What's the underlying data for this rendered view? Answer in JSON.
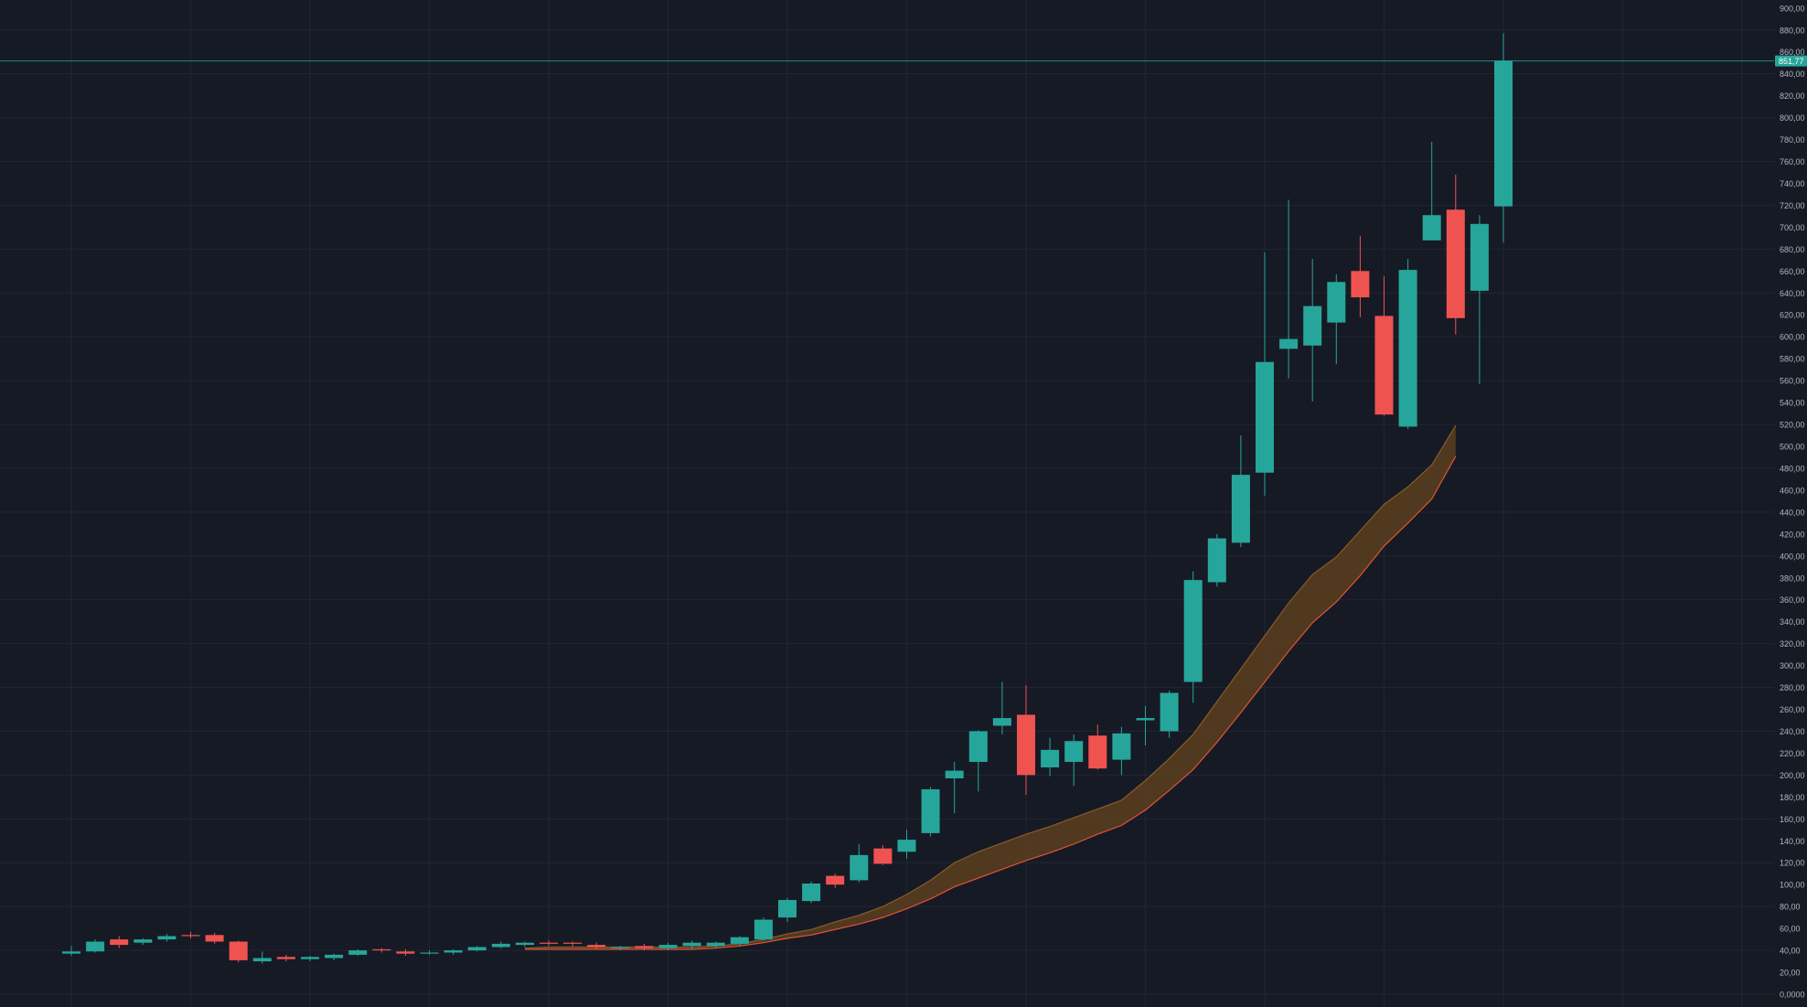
{
  "colors": {
    "background": "#161a25",
    "grid": "#222633",
    "up": "#26a69a",
    "down": "#ef5350",
    "axis_text": "#b2b5be",
    "price_line": "#26a69a",
    "band_fill": "#5a3f1d",
    "band_upper": "#8a5a2a",
    "band_lower": "#e0523a"
  },
  "chart_data": {
    "type": "candlestick",
    "ylim": [
      0,
      900
    ],
    "y_ticks": [
      {
        "value": 0,
        "label": "0,0000"
      },
      {
        "value": 20,
        "label": "20,00"
      },
      {
        "value": 40,
        "label": "40,00"
      },
      {
        "value": 60,
        "label": "60,00"
      },
      {
        "value": 80,
        "label": "80,00"
      },
      {
        "value": 100,
        "label": "100,00"
      },
      {
        "value": 120,
        "label": "120,00"
      },
      {
        "value": 140,
        "label": "140,00"
      },
      {
        "value": 160,
        "label": "160,00"
      },
      {
        "value": 180,
        "label": "180,00"
      },
      {
        "value": 200,
        "label": "200,00"
      },
      {
        "value": 220,
        "label": "220,00"
      },
      {
        "value": 240,
        "label": "240,00"
      },
      {
        "value": 260,
        "label": "260,00"
      },
      {
        "value": 280,
        "label": "280,00"
      },
      {
        "value": 300,
        "label": "300,00"
      },
      {
        "value": 320,
        "label": "320,00"
      },
      {
        "value": 340,
        "label": "340,00"
      },
      {
        "value": 360,
        "label": "360,00"
      },
      {
        "value": 380,
        "label": "380,00"
      },
      {
        "value": 400,
        "label": "400,00"
      },
      {
        "value": 420,
        "label": "420,00"
      },
      {
        "value": 440,
        "label": "440,00"
      },
      {
        "value": 460,
        "label": "460,00"
      },
      {
        "value": 480,
        "label": "480,00"
      },
      {
        "value": 500,
        "label": "500,00"
      },
      {
        "value": 520,
        "label": "520,00"
      },
      {
        "value": 540,
        "label": "540,00"
      },
      {
        "value": 560,
        "label": "560,00"
      },
      {
        "value": 580,
        "label": "580,00"
      },
      {
        "value": 600,
        "label": "600,00"
      },
      {
        "value": 620,
        "label": "620,00"
      },
      {
        "value": 640,
        "label": "640,00"
      },
      {
        "value": 660,
        "label": "660,00"
      },
      {
        "value": 680,
        "label": "680,00"
      },
      {
        "value": 700,
        "label": "700,00"
      },
      {
        "value": 720,
        "label": "720,00"
      },
      {
        "value": 740,
        "label": "740,00"
      },
      {
        "value": 760,
        "label": "760,00"
      },
      {
        "value": 780,
        "label": "780,00"
      },
      {
        "value": 800,
        "label": "800,00"
      },
      {
        "value": 820,
        "label": "820,00"
      },
      {
        "value": 840,
        "label": "840,00"
      },
      {
        "value": 860,
        "label": "860,00"
      },
      {
        "value": 880,
        "label": "880,00"
      },
      {
        "value": 900,
        "label": "900,00"
      }
    ],
    "last_price": {
      "value": 851.77,
      "label": "851,77"
    },
    "grid": true,
    "candles": [
      {
        "o": 37,
        "h": 44,
        "l": 35,
        "c": 39
      },
      {
        "o": 39,
        "h": 50,
        "l": 38,
        "c": 48
      },
      {
        "o": 50,
        "h": 53,
        "l": 42,
        "c": 45
      },
      {
        "o": 47,
        "h": 51,
        "l": 45,
        "c": 50
      },
      {
        "o": 50,
        "h": 55,
        "l": 48,
        "c": 53
      },
      {
        "o": 54,
        "h": 57,
        "l": 51,
        "c": 53
      },
      {
        "o": 54,
        "h": 56,
        "l": 46,
        "c": 48
      },
      {
        "o": 48,
        "h": 49,
        "l": 29,
        "c": 31
      },
      {
        "o": 30,
        "h": 39,
        "l": 28,
        "c": 33
      },
      {
        "o": 34,
        "h": 36,
        "l": 30,
        "c": 32
      },
      {
        "o": 32,
        "h": 35,
        "l": 30,
        "c": 34
      },
      {
        "o": 33,
        "h": 37,
        "l": 31,
        "c": 36
      },
      {
        "o": 36,
        "h": 41,
        "l": 35,
        "c": 40
      },
      {
        "o": 41,
        "h": 42,
        "l": 38,
        "c": 40
      },
      {
        "o": 39,
        "h": 41,
        "l": 35,
        "c": 37
      },
      {
        "o": 38,
        "h": 40,
        "l": 36,
        "c": 38
      },
      {
        "o": 38,
        "h": 41,
        "l": 36,
        "c": 40
      },
      {
        "o": 40,
        "h": 44,
        "l": 39,
        "c": 43
      },
      {
        "o": 43,
        "h": 48,
        "l": 42,
        "c": 46
      },
      {
        "o": 45,
        "h": 48,
        "l": 43,
        "c": 47
      },
      {
        "o": 47,
        "h": 49,
        "l": 44,
        "c": 46
      },
      {
        "o": 47,
        "h": 48,
        "l": 43,
        "c": 46
      },
      {
        "o": 45,
        "h": 47,
        "l": 41,
        "c": 43
      },
      {
        "o": 42,
        "h": 44,
        "l": 40,
        "c": 43
      },
      {
        "o": 44,
        "h": 46,
        "l": 40,
        "c": 42
      },
      {
        "o": 42,
        "h": 47,
        "l": 40,
        "c": 45
      },
      {
        "o": 44,
        "h": 49,
        "l": 41,
        "c": 47
      },
      {
        "o": 44,
        "h": 48,
        "l": 42,
        "c": 47
      },
      {
        "o": 46,
        "h": 53,
        "l": 44,
        "c": 52
      },
      {
        "o": 50,
        "h": 70,
        "l": 49,
        "c": 68
      },
      {
        "o": 70,
        "h": 88,
        "l": 66,
        "c": 86
      },
      {
        "o": 85,
        "h": 103,
        "l": 83,
        "c": 101
      },
      {
        "o": 108,
        "h": 110,
        "l": 97,
        "c": 100
      },
      {
        "o": 104,
        "h": 137,
        "l": 102,
        "c": 127
      },
      {
        "o": 133,
        "h": 136,
        "l": 118,
        "c": 119
      },
      {
        "o": 130,
        "h": 150,
        "l": 124,
        "c": 141
      },
      {
        "o": 147,
        "h": 189,
        "l": 144,
        "c": 187
      },
      {
        "o": 197,
        "h": 212,
        "l": 165,
        "c": 204
      },
      {
        "o": 212,
        "h": 241,
        "l": 185,
        "c": 240
      },
      {
        "o": 245,
        "h": 285,
        "l": 237,
        "c": 252
      },
      {
        "o": 255,
        "h": 282,
        "l": 182,
        "c": 200
      },
      {
        "o": 207,
        "h": 234,
        "l": 199,
        "c": 223
      },
      {
        "o": 212,
        "h": 237,
        "l": 190,
        "c": 231
      },
      {
        "o": 236,
        "h": 246,
        "l": 205,
        "c": 206
      },
      {
        "o": 214,
        "h": 244,
        "l": 200,
        "c": 238
      },
      {
        "o": 250,
        "h": 263,
        "l": 227,
        "c": 252
      },
      {
        "o": 240,
        "h": 277,
        "l": 234,
        "c": 275
      },
      {
        "o": 285,
        "h": 386,
        "l": 266,
        "c": 378
      },
      {
        "o": 376,
        "h": 420,
        "l": 372,
        "c": 416
      },
      {
        "o": 412,
        "h": 510,
        "l": 408,
        "c": 474
      },
      {
        "o": 476,
        "h": 677,
        "l": 455,
        "c": 577
      },
      {
        "o": 589,
        "h": 725,
        "l": 562,
        "c": 598
      },
      {
        "o": 592,
        "h": 671,
        "l": 541,
        "c": 628
      },
      {
        "o": 613,
        "h": 657,
        "l": 575,
        "c": 650
      },
      {
        "o": 660,
        "h": 692,
        "l": 618,
        "c": 636
      },
      {
        "o": 619,
        "h": 655,
        "l": 528,
        "c": 529
      },
      {
        "o": 518,
        "h": 671,
        "l": 516,
        "c": 661
      },
      {
        "o": 688,
        "h": 778,
        "l": 688,
        "c": 711
      },
      {
        "o": 716,
        "h": 748,
        "l": 602,
        "c": 617
      },
      {
        "o": 642,
        "h": 711,
        "l": 557,
        "c": 703
      },
      {
        "o": 719,
        "h": 877,
        "l": 686,
        "c": 852
      }
    ],
    "band": {
      "start_index": 19,
      "upper": [
        42,
        43,
        43,
        43,
        43,
        43,
        43,
        43,
        44,
        46,
        50,
        55,
        59,
        66,
        72,
        80,
        91,
        104,
        120,
        130,
        138,
        146,
        153,
        161,
        169,
        177,
        195,
        215,
        237,
        267,
        297,
        327,
        357,
        383,
        399,
        423,
        447,
        463,
        483,
        519
      ],
      "lower": [
        41,
        41,
        41,
        41,
        41,
        41,
        41,
        41,
        42,
        44,
        47,
        51,
        54,
        59,
        64,
        70,
        78,
        87,
        98,
        106,
        114,
        122,
        129,
        137,
        146,
        154,
        168,
        186,
        205,
        230,
        257,
        285,
        313,
        339,
        358,
        382,
        409,
        430,
        452,
        491
      ]
    }
  }
}
